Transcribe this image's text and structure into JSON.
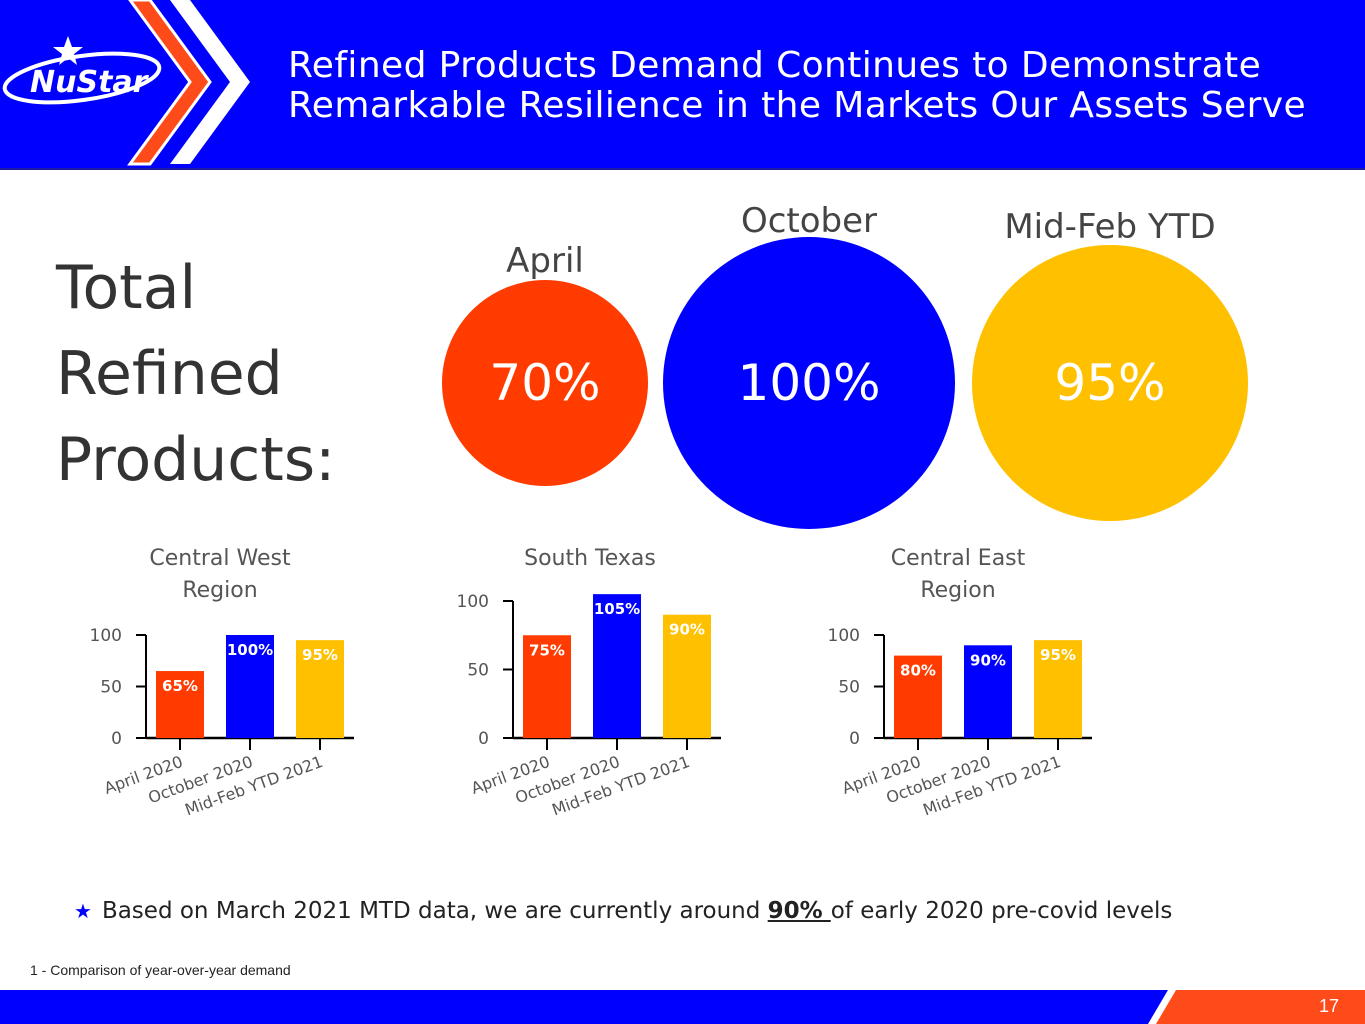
{
  "header": {
    "logo_text": "NuStar",
    "title_line1": "Refined Products Demand Continues to Demonstrate",
    "title_line2": "Remarkable Resilience in the Markets Our Assets Serve"
  },
  "main_label": {
    "line1": "Total",
    "line2": "Refined",
    "line3": "Products:"
  },
  "bubbles": [
    {
      "label": "April",
      "value": "70%",
      "color": "#ff3b00"
    },
    {
      "label": "October",
      "value": "100%",
      "color": "#0000ff"
    },
    {
      "label": "Mid-Feb YTD",
      "value": "95%",
      "color": "#ffc000"
    }
  ],
  "chart_data": [
    {
      "type": "bar",
      "title": "Central West Region",
      "title_lines": [
        "Central West",
        "Region"
      ],
      "categories": [
        "April 2020",
        "October 2020",
        "Mid-Feb YTD 2021"
      ],
      "values": [
        65,
        100,
        95
      ],
      "labels": [
        "65%",
        "100%",
        "95%"
      ],
      "colors": [
        "#ff3b00",
        "#0000ff",
        "#ffc000"
      ],
      "ylim": [
        0,
        100
      ],
      "yticks": [
        "0",
        "50",
        "100"
      ],
      "xlabel": "",
      "ylabel": ""
    },
    {
      "type": "bar",
      "title": "South Texas",
      "title_lines": [
        "South Texas"
      ],
      "categories": [
        "April 2020",
        "October 2020",
        "Mid-Feb YTD 2021"
      ],
      "values": [
        75,
        105,
        90
      ],
      "labels": [
        "75%",
        "105%",
        "90%"
      ],
      "colors": [
        "#ff3b00",
        "#0000ff",
        "#ffc000"
      ],
      "ylim": [
        0,
        100
      ],
      "yticks": [
        "0",
        "50",
        "100"
      ],
      "xlabel": "",
      "ylabel": ""
    },
    {
      "type": "bar",
      "title": "Central East Region",
      "title_lines": [
        "Central East",
        "Region"
      ],
      "categories": [
        "April 2020",
        "October 2020",
        "Mid-Feb YTD 2021"
      ],
      "values": [
        80,
        90,
        95
      ],
      "labels": [
        "80%",
        "90%",
        "95%"
      ],
      "colors": [
        "#ff3b00",
        "#0000ff",
        "#ffc000"
      ],
      "ylim": [
        0,
        100
      ],
      "yticks": [
        "0",
        "50",
        "100"
      ],
      "xlabel": "",
      "ylabel": ""
    }
  ],
  "note": {
    "prefix": "Based on March 2021 MTD data, we are currently around ",
    "highlight": "90% ",
    "suffix": "of early 2020 pre-covid levels"
  },
  "footnote": "1 - Comparison of year-over-year demand",
  "page_number": "17",
  "colors": {
    "blue": "#0000ff",
    "orange": "#ff3b00",
    "gold": "#ffc000"
  }
}
